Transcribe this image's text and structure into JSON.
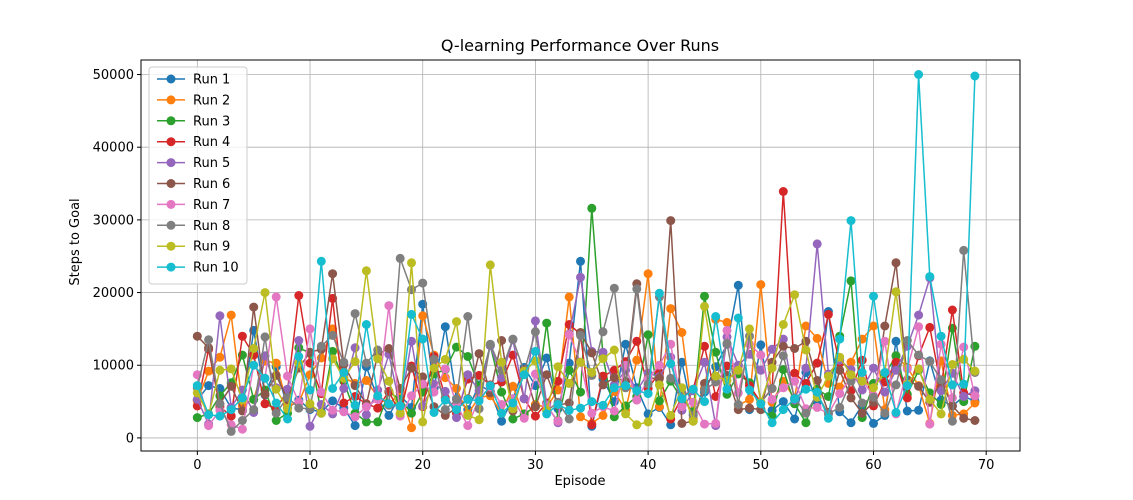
{
  "chart_data": {
    "type": "line",
    "title": "Q-learning Performance Over Runs",
    "xlabel": "Episode",
    "ylabel": "Steps to Goal",
    "xlim": [
      -5,
      73
    ],
    "ylim": [
      -1800,
      52000
    ],
    "xticks": [
      0,
      10,
      20,
      30,
      40,
      50,
      60,
      70
    ],
    "yticks": [
      0,
      10000,
      20000,
      30000,
      40000,
      50000
    ],
    "grid": true,
    "legend_position": "top-left",
    "x": [
      0,
      1,
      2,
      3,
      4,
      5,
      6,
      7,
      8,
      9,
      10,
      11,
      12,
      13,
      14,
      15,
      16,
      17,
      18,
      19,
      20,
      21,
      22,
      23,
      24,
      25,
      26,
      27,
      28,
      29,
      30,
      31,
      32,
      33,
      34,
      35,
      36,
      37,
      38,
      39,
      40,
      41,
      42,
      43,
      44,
      45,
      46,
      47,
      48,
      49,
      50,
      51,
      52,
      53,
      54,
      55,
      56,
      57,
      58,
      59,
      60,
      61,
      62,
      63,
      64,
      65,
      66,
      67,
      68,
      69
    ],
    "series": [
      {
        "name": "Run 1",
        "color": "#1f77b4",
        "values": [
          5200,
          7200,
          6800,
          4100,
          3900,
          14800,
          5900,
          9800,
          4100,
          5200,
          3900,
          3600,
          5100,
          4100,
          1700,
          9800,
          5400,
          3100,
          5800,
          4200,
          18400,
          6800,
          15300,
          5400,
          3900,
          7300,
          6400,
          2300,
          5400,
          9700,
          7200,
          11000,
          4000,
          10300,
          24300,
          1600,
          8100,
          5000,
          12900,
          6900,
          3300,
          4200,
          1800,
          10400,
          3200,
          6300,
          9800,
          12900,
          21000,
          3900,
          12800,
          3800,
          5000,
          2600,
          9000,
          4900,
          17400,
          3600,
          2100,
          4500,
          2000,
          3100,
          13300,
          3700,
          3800,
          10600,
          5200,
          4400,
          5700,
          5100
        ]
      },
      {
        "name": "Run 2",
        "color": "#ff7f0e",
        "values": [
          5100,
          9200,
          11100,
          16900,
          4400,
          5300,
          10600,
          10300,
          4500,
          4800,
          8700,
          11000,
          15000,
          8300,
          7500,
          7900,
          5600,
          4600,
          6300,
          1400,
          16800,
          11400,
          8300,
          6800,
          3300,
          5600,
          5800,
          3400,
          7100,
          3000,
          4600,
          4200,
          6600,
          19400,
          2900,
          2000,
          3100,
          6400,
          3800,
          10700,
          22600,
          4300,
          17800,
          14500,
          2600,
          6800,
          16300,
          15900,
          4500,
          5300,
          21100,
          4900,
          7800,
          5400,
          15400,
          13700,
          7500,
          7000,
          10400,
          13600,
          15400,
          3900,
          11300,
          9700,
          7200,
          2000,
          10600,
          3100,
          3300,
          4800
        ]
      },
      {
        "name": "Run 3",
        "color": "#2ca02c",
        "values": [
          2800,
          3300,
          5800,
          7600,
          11400,
          5300,
          6600,
          2400,
          3400,
          12400,
          11700,
          3400,
          11900,
          7800,
          3400,
          2200,
          2200,
          6300,
          5300,
          3400,
          6300,
          8800,
          9400,
          12500,
          11200,
          7100,
          12700,
          6300,
          2600,
          3300,
          4300,
          15800,
          2400,
          9300,
          6300,
          31600,
          11200,
          2900,
          4400,
          5700,
          14200,
          5100,
          7800,
          5300,
          3600,
          19500,
          11800,
          6000,
          8800,
          7600,
          3900,
          3000,
          9400,
          4700,
          2100,
          6700,
          5700,
          14000,
          21600,
          2800,
          7500,
          8700,
          11300,
          6000,
          9300,
          6200,
          4600,
          15100,
          5000,
          12600
        ]
      },
      {
        "name": "Run 4",
        "color": "#d62728",
        "values": [
          4400,
          12200,
          4300,
          3000,
          14000,
          11400,
          4700,
          4000,
          6500,
          19600,
          10300,
          6100,
          19200,
          4800,
          5700,
          4700,
          4100,
          6400,
          3300,
          9900,
          4300,
          11200,
          5500,
          3400,
          8100,
          8600,
          7300,
          7700,
          11400,
          5400,
          3000,
          4800,
          7800,
          15600,
          14300,
          1800,
          8500,
          9300,
          10500,
          13300,
          6800,
          9000,
          2600,
          5600,
          6700,
          12600,
          5700,
          9900,
          9900,
          7200,
          4900,
          6800,
          33900,
          8900,
          7500,
          10300,
          17000,
          10300,
          6500,
          10700,
          4400,
          7700,
          10400,
          5500,
          11300,
          15200,
          7000,
          17600,
          6200,
          5800
        ]
      },
      {
        "name": "Run 5",
        "color": "#9467bd",
        "values": [
          5300,
          1900,
          16800,
          4200,
          6600,
          3500,
          11300,
          6900,
          6700,
          13400,
          1600,
          4600,
          3300,
          6800,
          12400,
          3200,
          6600,
          11500,
          4200,
          13300,
          4400,
          7400,
          6400,
          2800,
          8700,
          6500,
          12700,
          8300,
          13500,
          5400,
          16100,
          4600,
          2100,
          14300,
          22100,
          11900,
          11800,
          7300,
          9300,
          6500,
          8900,
          8400,
          11100,
          3800,
          6500,
          10400,
          1700,
          13900,
          10000,
          11500,
          9300,
          12200,
          13600,
          5200,
          9600,
          26700,
          8800,
          10700,
          9400,
          6600,
          9600,
          6300,
          9300,
          12600,
          16900,
          22000,
          6500,
          8900,
          5700,
          6500
        ]
      },
      {
        "name": "Run 6",
        "color": "#8c564b",
        "values": [
          14000,
          12400,
          4700,
          7100,
          3700,
          18000,
          6000,
          8600,
          5300,
          9600,
          11800,
          12200,
          22600,
          10100,
          7200,
          4600,
          11500,
          12300,
          6800,
          9600,
          8400,
          4300,
          3100,
          4100,
          5400,
          11600,
          6200,
          13400,
          3700,
          9400,
          4300,
          8700,
          4500,
          4800,
          14500,
          11700,
          7300,
          8300,
          7800,
          21200,
          8200,
          8200,
          29900,
          2000,
          2300,
          7500,
          8400,
          8600,
          3900,
          4100,
          3900,
          10400,
          12600,
          12300,
          13300,
          7900,
          3500,
          9300,
          5500,
          3400,
          4900,
          15400,
          24100,
          8000,
          7100,
          4900,
          7800,
          4400,
          2700,
          2400
        ]
      },
      {
        "name": "Run 7",
        "color": "#e377c2",
        "values": [
          8700,
          1700,
          3800,
          1800,
          1200,
          10000,
          8200,
          19400,
          8500,
          4900,
          15000,
          6300,
          3800,
          3600,
          2900,
          4300,
          5300,
          18200,
          3000,
          5800,
          7400,
          6300,
          9500,
          4600,
          1700,
          5400,
          7000,
          4600,
          5400,
          2700,
          8800,
          4400,
          2300,
          14200,
          10400,
          3400,
          4300,
          3700,
          10000,
          5200,
          8100,
          10000,
          12900,
          4300,
          4900,
          1900,
          2000,
          14800,
          6200,
          12900,
          11400,
          5300,
          6900,
          7800,
          4000,
          4200,
          3300,
          6100,
          8300,
          7900,
          5800,
          13300,
          3300,
          9500,
          15300,
          1900,
          12900,
          5500,
          12500,
          5800
        ]
      },
      {
        "name": "Run 8",
        "color": "#7f7f7f",
        "values": [
          6900,
          13500,
          4700,
          900,
          2400,
          3900,
          13900,
          3400,
          5600,
          4100,
          4000,
          12600,
          14100,
          10400,
          17100,
          10300,
          12100,
          4500,
          24700,
          20400,
          21300,
          10800,
          3900,
          5300,
          16700,
          4000,
          12900,
          9300,
          13600,
          9100,
          14600,
          3700,
          4900,
          2600,
          14100,
          8600,
          14600,
          20600,
          6900,
          20500,
          7400,
          19400,
          8200,
          6200,
          3100,
          6600,
          7700,
          13000,
          4600,
          14000,
          4900,
          6800,
          11300,
          5500,
          3400,
          6000,
          3300,
          4200,
          7800,
          4800,
          5600,
          3400,
          7300,
          13400,
          11400,
          10500,
          8000,
          2300,
          25800,
          9000
        ]
      },
      {
        "name": "Run 9",
        "color": "#bcbd22",
        "values": [
          6200,
          3200,
          9300,
          9500,
          5200,
          12300,
          20000,
          6700,
          4000,
          10300,
          4700,
          3400,
          10900,
          8200,
          10500,
          23000,
          10900,
          7800,
          3400,
          24100,
          2200,
          9600,
          10800,
          16000,
          3100,
          2500,
          23800,
          10400,
          4000,
          9200,
          10600,
          3800,
          9800,
          7500,
          10400,
          9000,
          10900,
          12100,
          3300,
          1800,
          2200,
          7300,
          3100,
          6900,
          2300,
          18100,
          8500,
          7900,
          9300,
          15000,
          4900,
          9600,
          15600,
          19700,
          12100,
          5600,
          8500,
          11100,
          8700,
          7800,
          6900,
          9000,
          20100,
          7400,
          9500,
          5300,
          3300,
          10100,
          10800,
          9200
        ]
      },
      {
        "name": "Run 10",
        "color": "#17becf",
        "values": [
          7200,
          3200,
          3000,
          3900,
          5500,
          10000,
          8200,
          4800,
          2600,
          11200,
          6600,
          24300,
          6800,
          9000,
          4500,
          15600,
          5800,
          4700,
          4400,
          17000,
          13600,
          3500,
          5200,
          3900,
          5300,
          5100,
          7200,
          3400,
          4800,
          8700,
          11900,
          3300,
          4600,
          3800,
          4100,
          5000,
          4500,
          6900,
          7200,
          6500,
          6100,
          19900,
          10200,
          5400,
          6700,
          5000,
          16700,
          6700,
          16500,
          6600,
          4700,
          2100,
          3900,
          5400,
          6700,
          6300,
          2700,
          13600,
          29900,
          9000,
          19500,
          9000,
          3500,
          7200,
          50000,
          22200,
          14000,
          7300,
          7400,
          49800
        ]
      }
    ]
  }
}
